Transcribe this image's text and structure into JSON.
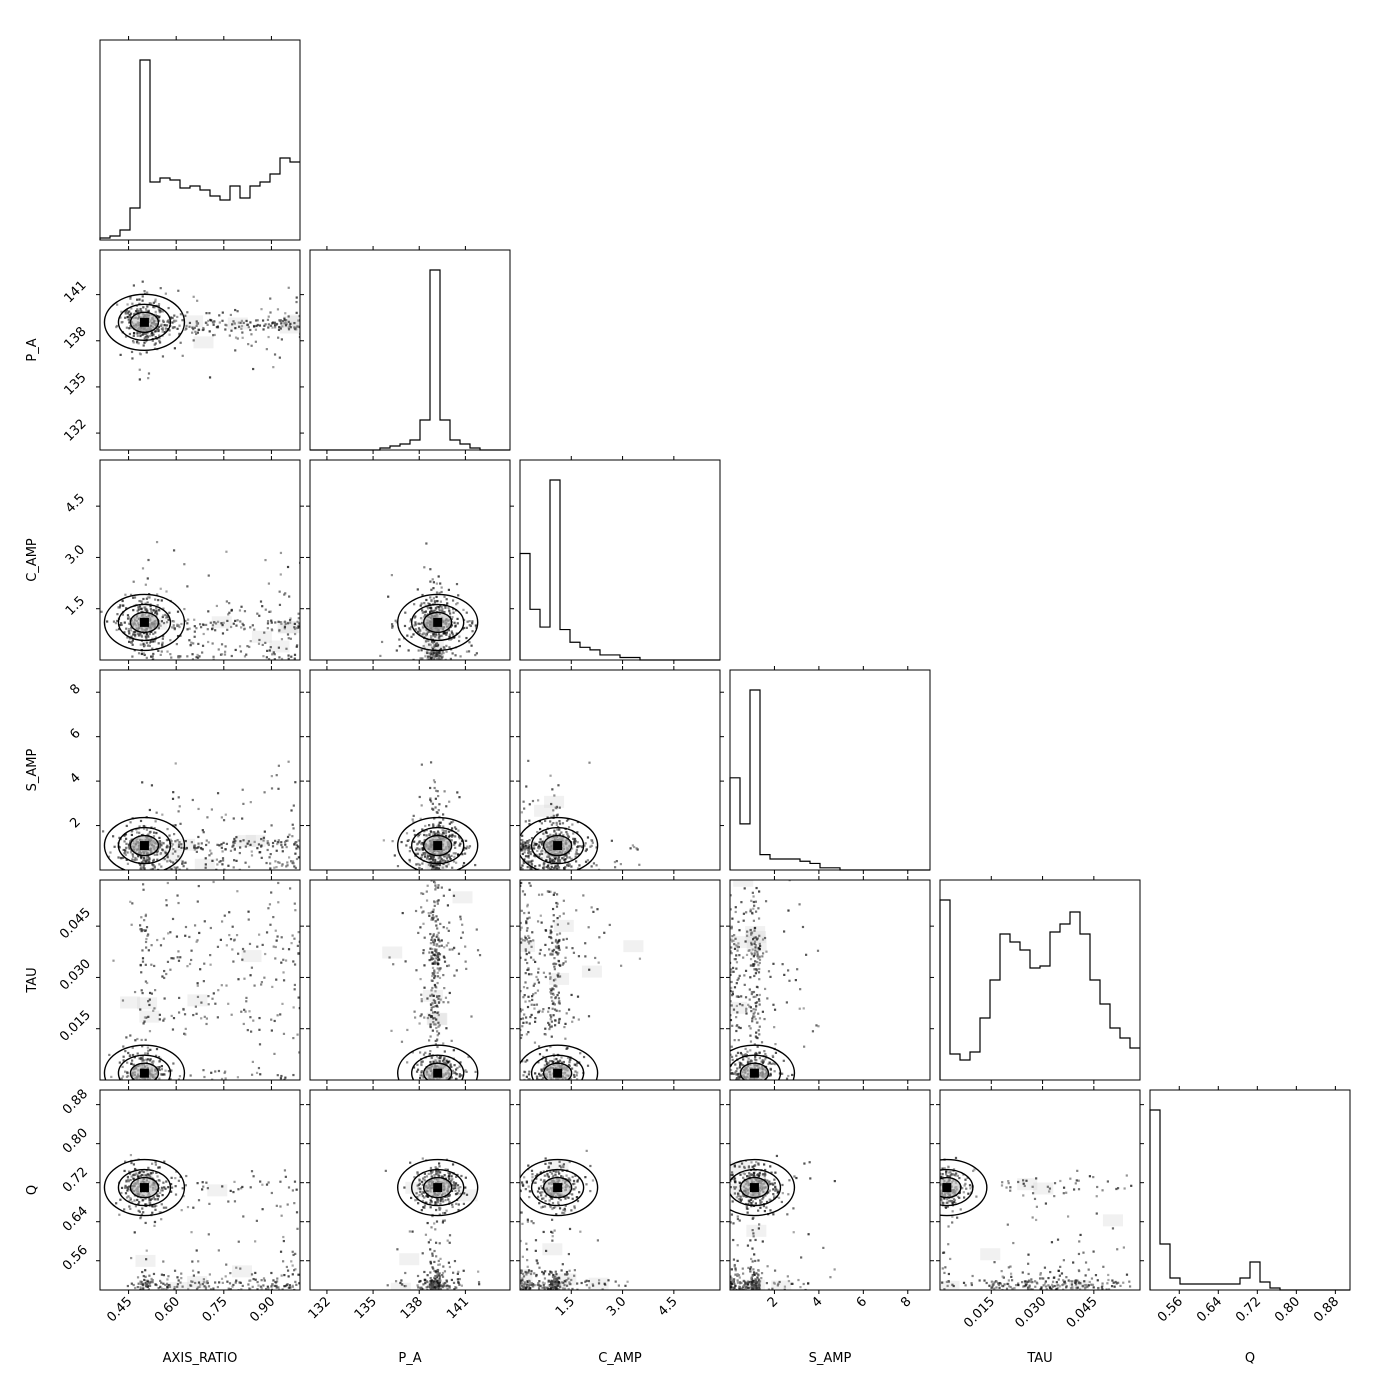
{
  "chart_data": {
    "type": "corner",
    "parameters": [
      "AXIS_RATIO",
      "P_A",
      "C_AMP",
      "S_AMP",
      "TAU",
      "Q"
    ],
    "axes": {
      "AXIS_RATIO": {
        "range": [
          0.36,
          0.99
        ],
        "ticks": [
          "0.45",
          "0.60",
          "0.75",
          "0.90"
        ]
      },
      "P_A": {
        "range": [
          130.9,
          143.9
        ],
        "ticks": [
          "132",
          "135",
          "138",
          "141"
        ]
      },
      "C_AMP": {
        "range": [
          0.0,
          5.85
        ],
        "ticks": [
          "1.5",
          "3.0",
          "4.5"
        ]
      },
      "S_AMP": {
        "range": [
          0.0,
          9.0
        ],
        "ticks": [
          "2",
          "4",
          "6",
          "8"
        ]
      },
      "TAU": {
        "range": [
          0.0,
          0.0585
        ],
        "ticks": [
          "0.015",
          "0.030",
          "0.045"
        ]
      },
      "Q": {
        "range": [
          0.5,
          0.91
        ],
        "ticks": [
          "0.56",
          "0.64",
          "0.72",
          "0.80",
          "0.88"
        ]
      }
    },
    "histograms": {
      "AXIS_RATIO": [
        0.01,
        0.02,
        0.05,
        0.16,
        0.9,
        0.29,
        0.31,
        0.3,
        0.26,
        0.27,
        0.25,
        0.22,
        0.2,
        0.27,
        0.21,
        0.27,
        0.29,
        0.33,
        0.41,
        0.39
      ],
      "P_A": [
        0.0,
        0.0,
        0.0,
        0.0,
        0.0,
        0.0,
        0.0,
        0.01,
        0.02,
        0.03,
        0.05,
        0.15,
        0.9,
        0.15,
        0.05,
        0.03,
        0.01,
        0.0,
        0.0,
        0.0
      ],
      "C_AMP": [
        0.42,
        0.2,
        0.13,
        0.71,
        0.12,
        0.07,
        0.05,
        0.04,
        0.02,
        0.02,
        0.01,
        0.01,
        0.0,
        0.0,
        0.0,
        0.0,
        0.0,
        0.0,
        0.0,
        0.0
      ],
      "S_AMP": [
        0.42,
        0.21,
        0.82,
        0.07,
        0.05,
        0.05,
        0.05,
        0.04,
        0.03,
        0.01,
        0.01,
        0.0,
        0.0,
        0.0,
        0.0,
        0.0,
        0.0,
        0.0,
        0.0,
        0.0
      ],
      "TAU": [
        0.9,
        0.13,
        0.1,
        0.14,
        0.31,
        0.5,
        0.73,
        0.69,
        0.65,
        0.56,
        0.57,
        0.74,
        0.78,
        0.84,
        0.73,
        0.5,
        0.38,
        0.26,
        0.21,
        0.16
      ],
      "Q": [
        0.9,
        0.23,
        0.06,
        0.03,
        0.03,
        0.03,
        0.03,
        0.03,
        0.03,
        0.06,
        0.14,
        0.04,
        0.01,
        0.0,
        0.0,
        0.0,
        0.0,
        0.0,
        0.0,
        0.0
      ]
    },
    "marker": {
      "AXIS_RATIO": 0.5,
      "P_A": 139.2,
      "C_AMP": 1.1,
      "S_AMP": 1.1,
      "TAU": 0.002,
      "Q": 0.71
    },
    "scatter_style": "density points with 1-2 sigma contours"
  }
}
